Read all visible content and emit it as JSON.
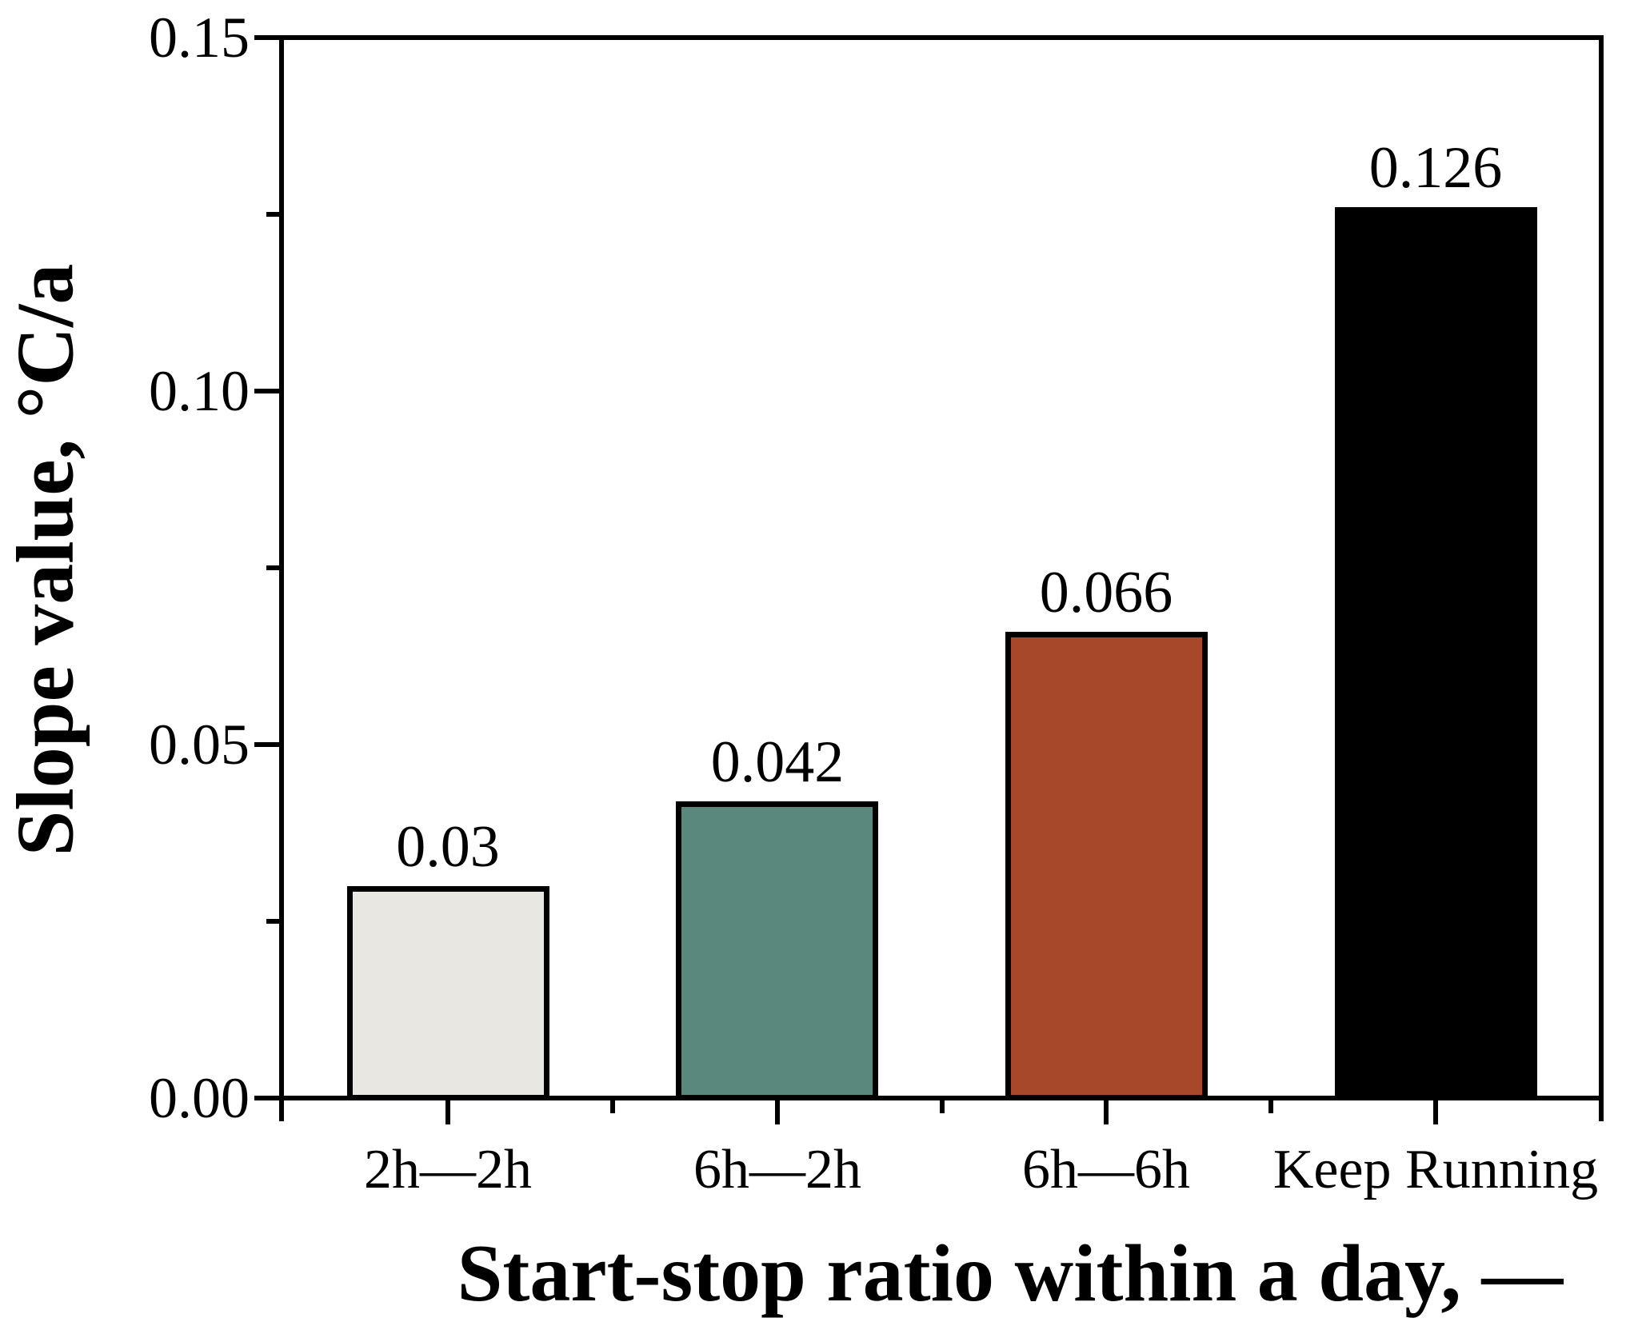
{
  "chart_data": {
    "type": "bar",
    "title": "",
    "categories": [
      "2h—2h",
      "6h—2h",
      "6h—6h",
      "Keep Running"
    ],
    "values": [
      0.03,
      0.042,
      0.066,
      0.126
    ],
    "value_labels": [
      "0.03",
      "0.042",
      "0.066",
      "0.126"
    ],
    "bar_colors": [
      "#e8e7e1",
      "#5b887d",
      "#a8482a",
      "#000000"
    ],
    "bar_border_color": "#000000",
    "xlabel": "Start-stop ratio within a day, —",
    "ylabel": "Slope value, °C/a",
    "ylim": [
      0,
      0.15
    ],
    "yticks": {
      "values": [
        0,
        0.05,
        0.1,
        0.15
      ],
      "labels": [
        "0.00",
        "0.05",
        "0.10",
        "0.15"
      ]
    },
    "yticks_minor": [
      0.025,
      0.075,
      0.125
    ],
    "xticks": "category-centers",
    "xticks_minor": "category-boundaries",
    "grid": false,
    "legend": null,
    "frame": true,
    "background": "#ffffff",
    "text_color": "#000000"
  }
}
